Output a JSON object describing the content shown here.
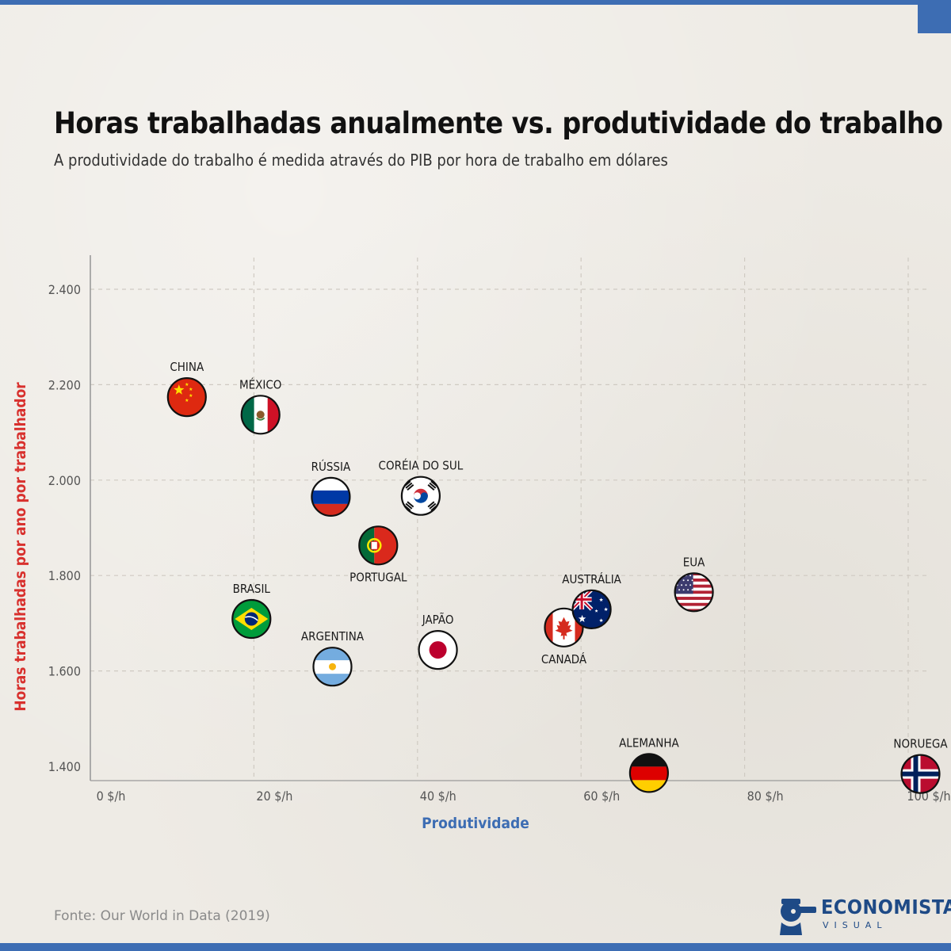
{
  "header": {
    "title": "Horas trabalhadas anualmente vs. produtividade do trabalho",
    "subtitle": "A produtividade do trabalho é medida através do PIB por hora de trabalho em dólares"
  },
  "footer": {
    "source": "Fonte: Our World in Data (2019)",
    "logo_word": "ECONOMISTA",
    "logo_sub": "VISUAL"
  },
  "colors": {
    "accent": "#3d6db3",
    "y_title": "#d8312e",
    "x_title": "#3d6db3"
  },
  "chart_data": {
    "type": "scatter",
    "xlabel": "Produtividade",
    "ylabel": "Horas trabalhadas por ano por trabalhador",
    "xlim": [
      0,
      100
    ],
    "ylim": [
      1400,
      2400
    ],
    "x_ticks": [
      {
        "value": 0,
        "label": "0 $/h"
      },
      {
        "value": 20,
        "label": "20 $/h"
      },
      {
        "value": 40,
        "label": "40 $/h"
      },
      {
        "value": 60,
        "label": "60 $/h"
      },
      {
        "value": 80,
        "label": "80 $/h"
      },
      {
        "value": 100,
        "label": "100 $/h"
      }
    ],
    "y_ticks": [
      {
        "value": 1400,
        "label": "1.400"
      },
      {
        "value": 1600,
        "label": "1.600"
      },
      {
        "value": 1800,
        "label": "1.800"
      },
      {
        "value": 2000,
        "label": "2.000"
      },
      {
        "value": 2200,
        "label": "2.200"
      },
      {
        "value": 2400,
        "label": "2.400"
      }
    ],
    "grid": true,
    "points": [
      {
        "name": "CHINA",
        "x": 11.8,
        "y": 2174,
        "flag": "china",
        "label_pos": "above"
      },
      {
        "name": "MÉXICO",
        "x": 20.8,
        "y": 2137,
        "flag": "mexico",
        "label_pos": "above"
      },
      {
        "name": "RÚSSIA",
        "x": 29.4,
        "y": 1965,
        "flag": "russia",
        "label_pos": "above"
      },
      {
        "name": "CORÉIA DO SUL",
        "x": 40.4,
        "y": 1967,
        "flag": "south-korea",
        "label_pos": "above"
      },
      {
        "name": "PORTUGAL",
        "x": 35.2,
        "y": 1863,
        "flag": "portugal",
        "label_pos": "below"
      },
      {
        "name": "BRASIL",
        "x": 19.7,
        "y": 1709,
        "flag": "brazil",
        "label_pos": "above"
      },
      {
        "name": "ARGENTINA",
        "x": 29.6,
        "y": 1609,
        "flag": "argentina",
        "label_pos": "above"
      },
      {
        "name": "JAPÃO",
        "x": 42.5,
        "y": 1644,
        "flag": "japan",
        "label_pos": "above"
      },
      {
        "name": "CANADÁ",
        "x": 57.9,
        "y": 1691,
        "flag": "canada",
        "label_pos": "below"
      },
      {
        "name": "AUSTRÁLIA",
        "x": 61.3,
        "y": 1729,
        "flag": "australia",
        "label_pos": "above"
      },
      {
        "name": "EUA",
        "x": 73.8,
        "y": 1765,
        "flag": "usa",
        "label_pos": "above"
      },
      {
        "name": "ALEMANHA",
        "x": 68.3,
        "y": 1386,
        "flag": "germany",
        "label_pos": "above"
      },
      {
        "name": "NORUEGA",
        "x": 101.5,
        "y": 1384,
        "flag": "norway",
        "label_pos": "above"
      }
    ]
  }
}
